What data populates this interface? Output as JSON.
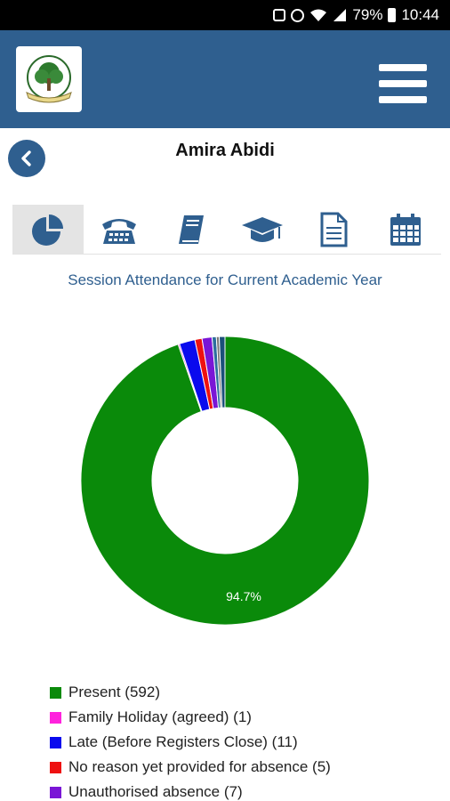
{
  "status_bar": {
    "battery": "79%",
    "time": "10:44",
    "icons": [
      "mute-icon",
      "alarm-icon",
      "wifi-icon",
      "signal-icon",
      "battery-icon"
    ]
  },
  "header": {
    "logo": "school-logo",
    "menu_icon": "hamburger-icon",
    "accent_color": "#2f5f8f"
  },
  "student": {
    "name": "Amira Abidi"
  },
  "tabs": [
    {
      "icon": "pie-chart-icon",
      "active": true
    },
    {
      "icon": "telephone-icon",
      "active": false
    },
    {
      "icon": "book-icon",
      "active": false
    },
    {
      "icon": "graduation-cap-icon",
      "active": false
    },
    {
      "icon": "document-icon",
      "active": false
    },
    {
      "icon": "calendar-icon",
      "active": false
    }
  ],
  "chart_data": {
    "type": "pie",
    "title": "Session Attendance for Current Academic Year",
    "donut": true,
    "slice_label": "94.7%",
    "series": [
      {
        "name": "Present (592)",
        "value": 592,
        "color": "#0a8a0a"
      },
      {
        "name": "Family Holiday (agreed) (1)",
        "value": 1,
        "color": "#ff22dd"
      },
      {
        "name": "Late (Before Registers Close) (11)",
        "value": 11,
        "color": "#0a0aee"
      },
      {
        "name": "No reason yet provided for absence (5)",
        "value": 5,
        "color": "#ee1111"
      },
      {
        "name": "Unauthorised absence (7)",
        "value": 7,
        "color": "#7a16d6"
      },
      {
        "name": "",
        "value": 3,
        "color": "#2c6e9e"
      },
      {
        "name": "",
        "value": 2,
        "color": "#777777"
      },
      {
        "name": "",
        "value": 4,
        "color": "#1b4f7a"
      }
    ],
    "legend_position": "bottom-left"
  }
}
